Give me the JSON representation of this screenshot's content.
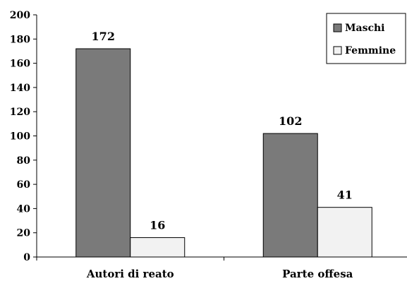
{
  "chart_data": {
    "type": "bar",
    "title": "",
    "xlabel": "",
    "ylabel": "",
    "categories": [
      "Autori di reato",
      "Parte offesa"
    ],
    "series": [
      {
        "name": "Maschi",
        "values": [
          172,
          102
        ],
        "color": "#7a7a7a"
      },
      {
        "name": "Femmine",
        "values": [
          16,
          41
        ],
        "color": "#f2f2f2"
      }
    ],
    "ylim": [
      0,
      200
    ],
    "yticks": [
      0,
      20,
      40,
      60,
      80,
      100,
      120,
      140,
      160,
      180,
      200
    ],
    "data_labels": true,
    "grid": false,
    "legend_position": "top-right"
  }
}
